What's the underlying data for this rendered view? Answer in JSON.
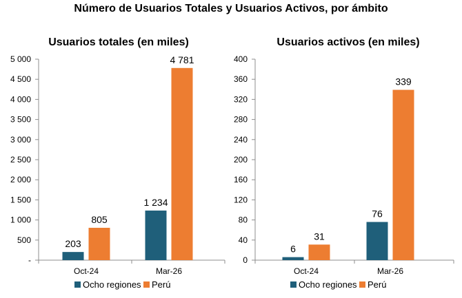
{
  "main_title": "Número de Usuarios Totales y Usuarios Activos, por ámbito",
  "colors": {
    "ocho_regiones": "#1f5f7a",
    "peru": "#ed7d31",
    "axis": "#8c8c8c"
  },
  "legend": {
    "items": [
      "Ocho regiones",
      "Perú"
    ]
  },
  "chart_data": [
    {
      "type": "bar",
      "title": "Usuarios totales (en miles)",
      "categories": [
        "Oct-24",
        "Mar-26"
      ],
      "series": [
        {
          "name": "Ocho regiones",
          "values": [
            203,
            1234
          ],
          "labels": [
            "203",
            "1 234"
          ]
        },
        {
          "name": "Perú",
          "values": [
            805,
            4781
          ],
          "labels": [
            "805",
            "4 781"
          ]
        }
      ],
      "ylim": [
        0,
        5000
      ],
      "yticks": [
        0,
        500,
        1000,
        1500,
        2000,
        2500,
        3000,
        3500,
        4000,
        4500,
        5000
      ],
      "ytick_labels": [
        "-",
        "500",
        "1 000",
        "1 500",
        "2 000",
        "2 500",
        "3 000",
        "3 500",
        "4 000",
        "4 500",
        "5 000"
      ],
      "grid": false,
      "legend": "bottom"
    },
    {
      "type": "bar",
      "title": "Usuarios activos (en miles)",
      "categories": [
        "Oct-24",
        "Mar-26"
      ],
      "series": [
        {
          "name": "Ocho regiones",
          "values": [
            6,
            76
          ],
          "labels": [
            "6",
            "76"
          ]
        },
        {
          "name": "Perú",
          "values": [
            31,
            339
          ],
          "labels": [
            "31",
            "339"
          ]
        }
      ],
      "ylim": [
        0,
        400
      ],
      "yticks": [
        0,
        40,
        80,
        120,
        160,
        200,
        240,
        280,
        320,
        360,
        400
      ],
      "ytick_labels": [
        "0",
        "40",
        "80",
        "120",
        "160",
        "200",
        "240",
        "280",
        "320",
        "360",
        "400"
      ],
      "grid": false,
      "legend": "bottom"
    }
  ]
}
